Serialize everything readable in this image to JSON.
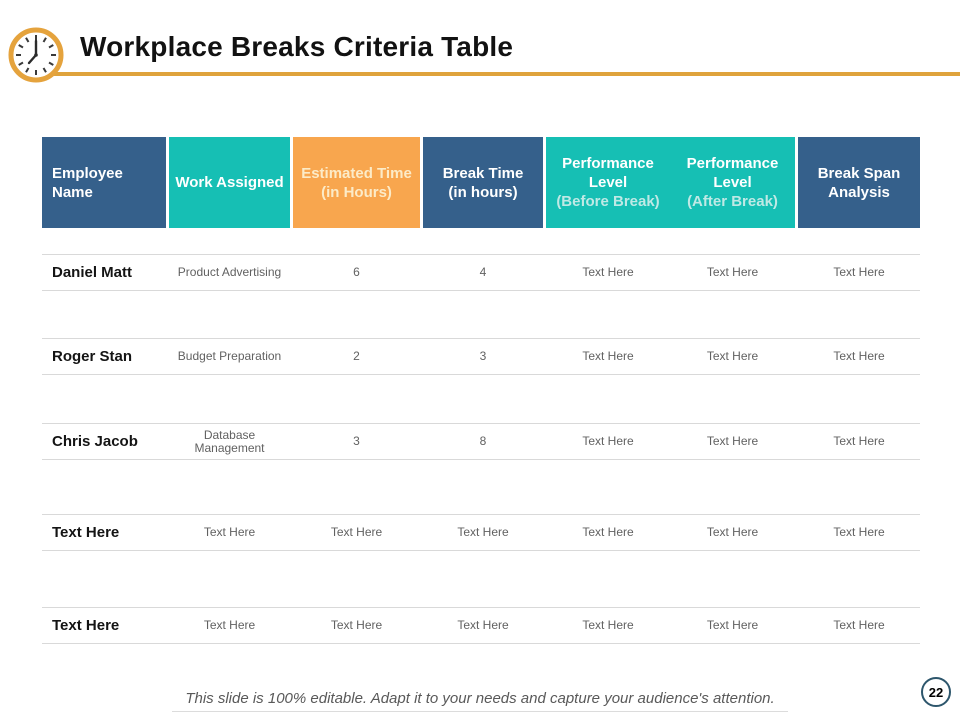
{
  "slide": {
    "title": "Workplace Breaks Criteria Table",
    "footer_note": "This slide is 100% editable. Adapt it to your needs and capture your audience's attention.",
    "page_number": "22",
    "header_icon": "clock"
  },
  "colors": {
    "accent_gold": "#DFA33C",
    "header_blue": "#35608B",
    "header_teal": "#16BFB4",
    "header_orange": "#F8A64E",
    "orange_text": "#FCEBC7",
    "teal_subtext": "#BFE9E5",
    "row_border": "#D9D9D9",
    "body_text": "#616161",
    "badge_border": "#2D566C"
  },
  "table": {
    "columns": [
      {
        "id": "employee-name",
        "title": "Employee Name",
        "subtitle": "",
        "bg": "#35608B",
        "title_color": "#FFFFFF",
        "subtitle_color": "#FFFFFF"
      },
      {
        "id": "work-assigned",
        "title": "Work Assigned",
        "subtitle": "",
        "bg": "#16BFB4",
        "title_color": "#FFFFFF",
        "subtitle_color": "#FFFFFF"
      },
      {
        "id": "estimated-time",
        "title": "Estimated Time",
        "subtitle": "(in Hours)",
        "bg": "#F8A64E",
        "title_color": "#FCEBC7",
        "subtitle_color": "#FCEBC7"
      },
      {
        "id": "break-time",
        "title": "Break Time",
        "subtitle": "(in hours)",
        "bg": "#35608B",
        "title_color": "#FFFFFF",
        "subtitle_color": "#FFFFFF"
      },
      {
        "id": "performance-level-before",
        "title": "Performance Level",
        "subtitle": "(Before Break)",
        "bg": "#16BFB4",
        "title_color": "#FFFFFF",
        "subtitle_color": "#BFE9E5"
      },
      {
        "id": "performance-level-after",
        "title": "Performance Level",
        "subtitle": "(After Break)",
        "bg": "#16BFB4",
        "title_color": "#FFFFFF",
        "subtitle_color": "#BFE9E5"
      },
      {
        "id": "break-span-analysis",
        "title": "Break Span Analysis",
        "subtitle": "",
        "bg": "#35608B",
        "title_color": "#FFFFFF",
        "subtitle_color": "#FFFFFF"
      }
    ],
    "rows": [
      {
        "cells": [
          "Daniel Matt",
          "Product Advertising",
          "6",
          "4",
          "Text Here",
          "Text Here",
          "Text Here"
        ]
      },
      {
        "cells": [
          "Roger Stan",
          "Budget Preparation",
          "2",
          "3",
          "Text Here",
          "Text Here",
          "Text Here"
        ]
      },
      {
        "cells": [
          "Chris Jacob",
          "Database\nManagement",
          "3",
          "8",
          "Text Here",
          "Text Here",
          "Text Here"
        ]
      },
      {
        "cells": [
          "Text Here",
          "Text Here",
          "Text Here",
          "Text Here",
          "Text Here",
          "Text Here",
          "Text Here"
        ]
      },
      {
        "cells": [
          "Text Here",
          "Text Here",
          "Text Here",
          "Text Here",
          "Text Here",
          "Text Here",
          "Text Here"
        ]
      }
    ]
  }
}
